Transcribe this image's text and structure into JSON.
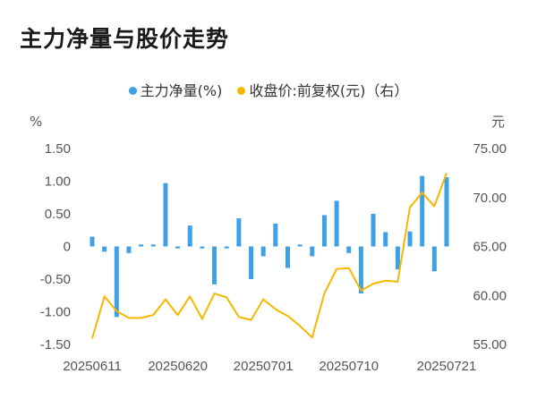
{
  "chart_data": {
    "type": "bar+line",
    "title": "主力净量与股价走势",
    "left_axis_unit": "%",
    "right_axis_unit": "元",
    "left_ylim": [
      -1.5,
      1.5
    ],
    "left_ticks": [
      "1.50",
      "1.00",
      "0.50",
      "0",
      "-0.50",
      "-1.00",
      "-1.50"
    ],
    "right_ylim": [
      55,
      75
    ],
    "right_ticks": [
      "75.00",
      "70.00",
      "65.00",
      "60.00",
      "55.00"
    ],
    "x_tick_labels": [
      "20250611",
      "20250620",
      "20250701",
      "20250710",
      "20250721"
    ],
    "x_tick_indices": [
      0,
      7,
      14,
      21,
      29
    ],
    "grid": false,
    "legend_position": "top-center",
    "series": [
      {
        "name": "主力净量(%)",
        "kind": "bar",
        "color": "#3fa0e6",
        "values": [
          0.15,
          -0.08,
          -1.08,
          -0.1,
          0.03,
          0.03,
          0.97,
          -0.03,
          0.32,
          -0.03,
          -0.58,
          -0.03,
          0.43,
          -0.5,
          -0.15,
          0.35,
          -0.33,
          0.03,
          -0.15,
          0.48,
          0.7,
          -0.1,
          -0.72,
          0.5,
          0.22,
          -0.35,
          0.23,
          1.08,
          -0.38,
          1.06
        ]
      },
      {
        "name": "收盘价:前复权(元)（右）",
        "kind": "line",
        "color": "#f5b700",
        "values": [
          55.6,
          59.9,
          58.4,
          57.7,
          57.7,
          58.0,
          59.6,
          58.0,
          59.9,
          57.6,
          60.2,
          59.8,
          57.8,
          57.5,
          59.6,
          58.6,
          57.9,
          56.9,
          55.7,
          60.2,
          62.7,
          62.8,
          60.5,
          61.2,
          61.5,
          61.4,
          69.0,
          70.5,
          69.1,
          72.5
        ]
      }
    ]
  }
}
